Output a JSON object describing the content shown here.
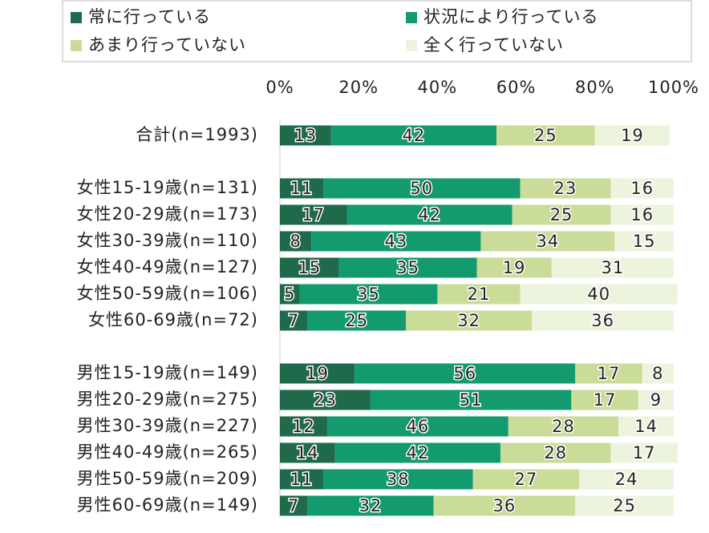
{
  "chart_data": {
    "type": "stacked-bar-horizontal",
    "categories": [
      "合計(n=1993)",
      null,
      "女性15-19歳(n=131)",
      "女性20-29歳(n=173)",
      "女性30-39歳(n=110)",
      "女性40-49歳(n=127)",
      "女性50-59歳(n=106)",
      "女性60-69歳(n=72)",
      null,
      "男性15-19歳(n=149)",
      "男性20-29歳(n=275)",
      "男性30-39歳(n=227)",
      "男性40-49歳(n=265)",
      "男性50-59歳(n=209)",
      "男性60-69歳(n=149)"
    ],
    "series": [
      {
        "name": "常に行っている",
        "color": "#1f6a4a",
        "values": [
          13,
          null,
          11,
          17,
          8,
          15,
          5,
          7,
          null,
          19,
          23,
          12,
          14,
          11,
          7
        ]
      },
      {
        "name": "状況により行っている",
        "color": "#139a6e",
        "values": [
          42,
          null,
          50,
          42,
          43,
          35,
          35,
          25,
          null,
          56,
          51,
          46,
          42,
          38,
          32
        ]
      },
      {
        "name": "あまり行っていない",
        "color": "#c9dc98",
        "values": [
          25,
          null,
          23,
          25,
          34,
          19,
          21,
          32,
          null,
          17,
          17,
          28,
          28,
          27,
          36
        ]
      },
      {
        "name": "全く行っていない",
        "color": "#edf4de",
        "values": [
          19,
          null,
          16,
          16,
          15,
          31,
          40,
          36,
          null,
          8,
          9,
          14,
          17,
          24,
          25
        ]
      }
    ],
    "xlim": [
      0,
      100
    ],
    "xticks": [
      {
        "value": 0,
        "label": "0%"
      },
      {
        "value": 20,
        "label": "20%"
      },
      {
        "value": 40,
        "label": "40%"
      },
      {
        "value": 60,
        "label": "60%"
      },
      {
        "value": 80,
        "label": "80%"
      },
      {
        "value": 100,
        "label": "100%"
      }
    ]
  }
}
